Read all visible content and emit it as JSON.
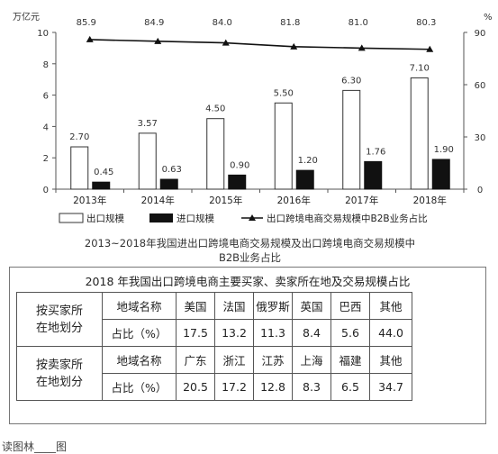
{
  "chart_data": {
    "type": "bar",
    "categories": [
      "2013年",
      "2014年",
      "2015年",
      "2016年",
      "2017年",
      "2018年"
    ],
    "series": [
      {
        "name": "出口规模",
        "kind": "bar",
        "axis": "left",
        "color": "#ffffff",
        "values": [
          2.7,
          3.57,
          4.5,
          5.5,
          6.3,
          7.1
        ],
        "labels": [
          "2.70",
          "3.57",
          "4.50",
          "5.50",
          "6.30",
          "7.10"
        ]
      },
      {
        "name": "进口规模",
        "kind": "bar",
        "axis": "left",
        "color": "#111111",
        "values": [
          0.45,
          0.63,
          0.9,
          1.2,
          1.76,
          1.9
        ],
        "labels": [
          "0.45",
          "0.63",
          "0.90",
          "1.20",
          "1.76",
          "1.90"
        ]
      },
      {
        "name": "出口跨境电商交易规模中B2B业务占比",
        "kind": "line",
        "axis": "right",
        "color": "#111111",
        "values": [
          85.9,
          84.9,
          84.0,
          81.8,
          81.0,
          80.3
        ],
        "labels": [
          "85.9",
          "84.9",
          "84.0",
          "81.8",
          "81.0",
          "80.3"
        ]
      }
    ],
    "ylabel_left": "万亿元",
    "ylabel_right": "%",
    "ylim_left": [
      0,
      10
    ],
    "yticks_left": [
      "0",
      "2",
      "4",
      "6",
      "8",
      "10"
    ],
    "ylim_right": [
      0,
      90
    ],
    "yticks_right": [
      "0",
      "30",
      "60",
      "90"
    ],
    "title": "2013~2018年我国进出口跨境电商交易规模及出口跨境电商交易规模中 B2B业务占比",
    "title_line1": "2013~2018年我国进出口跨境电商交易规模及出口跨境电商交易规模中",
    "title_line2": "B2B业务占比",
    "legend_position": "bottom",
    "grid": false
  },
  "table": {
    "title": "2018 年我国出口跨境电商主要买家、卖家所在地及交易规模占比",
    "groups": [
      {
        "label_line1": "按买家所",
        "label_line2": "在地划分",
        "region_header": "地域名称",
        "share_header": "占比（%）",
        "regions": [
          "美国",
          "法国",
          "俄罗斯",
          "英国",
          "巴西",
          "其他"
        ],
        "shares": [
          "17.5",
          "13.2",
          "11.3",
          "8.4",
          "5.6",
          "44.0"
        ]
      },
      {
        "label_line1": "按卖家所",
        "label_line2": "在地划分",
        "region_header": "地域名称",
        "share_header": "占比（%）",
        "regions": [
          "广东",
          "浙江",
          "江苏",
          "上海",
          "福建",
          "其他"
        ],
        "shares": [
          "20.5",
          "17.2",
          "12.8",
          "8.3",
          "6.5",
          "34.7"
        ]
      }
    ]
  },
  "footer_text": "读图林____图"
}
